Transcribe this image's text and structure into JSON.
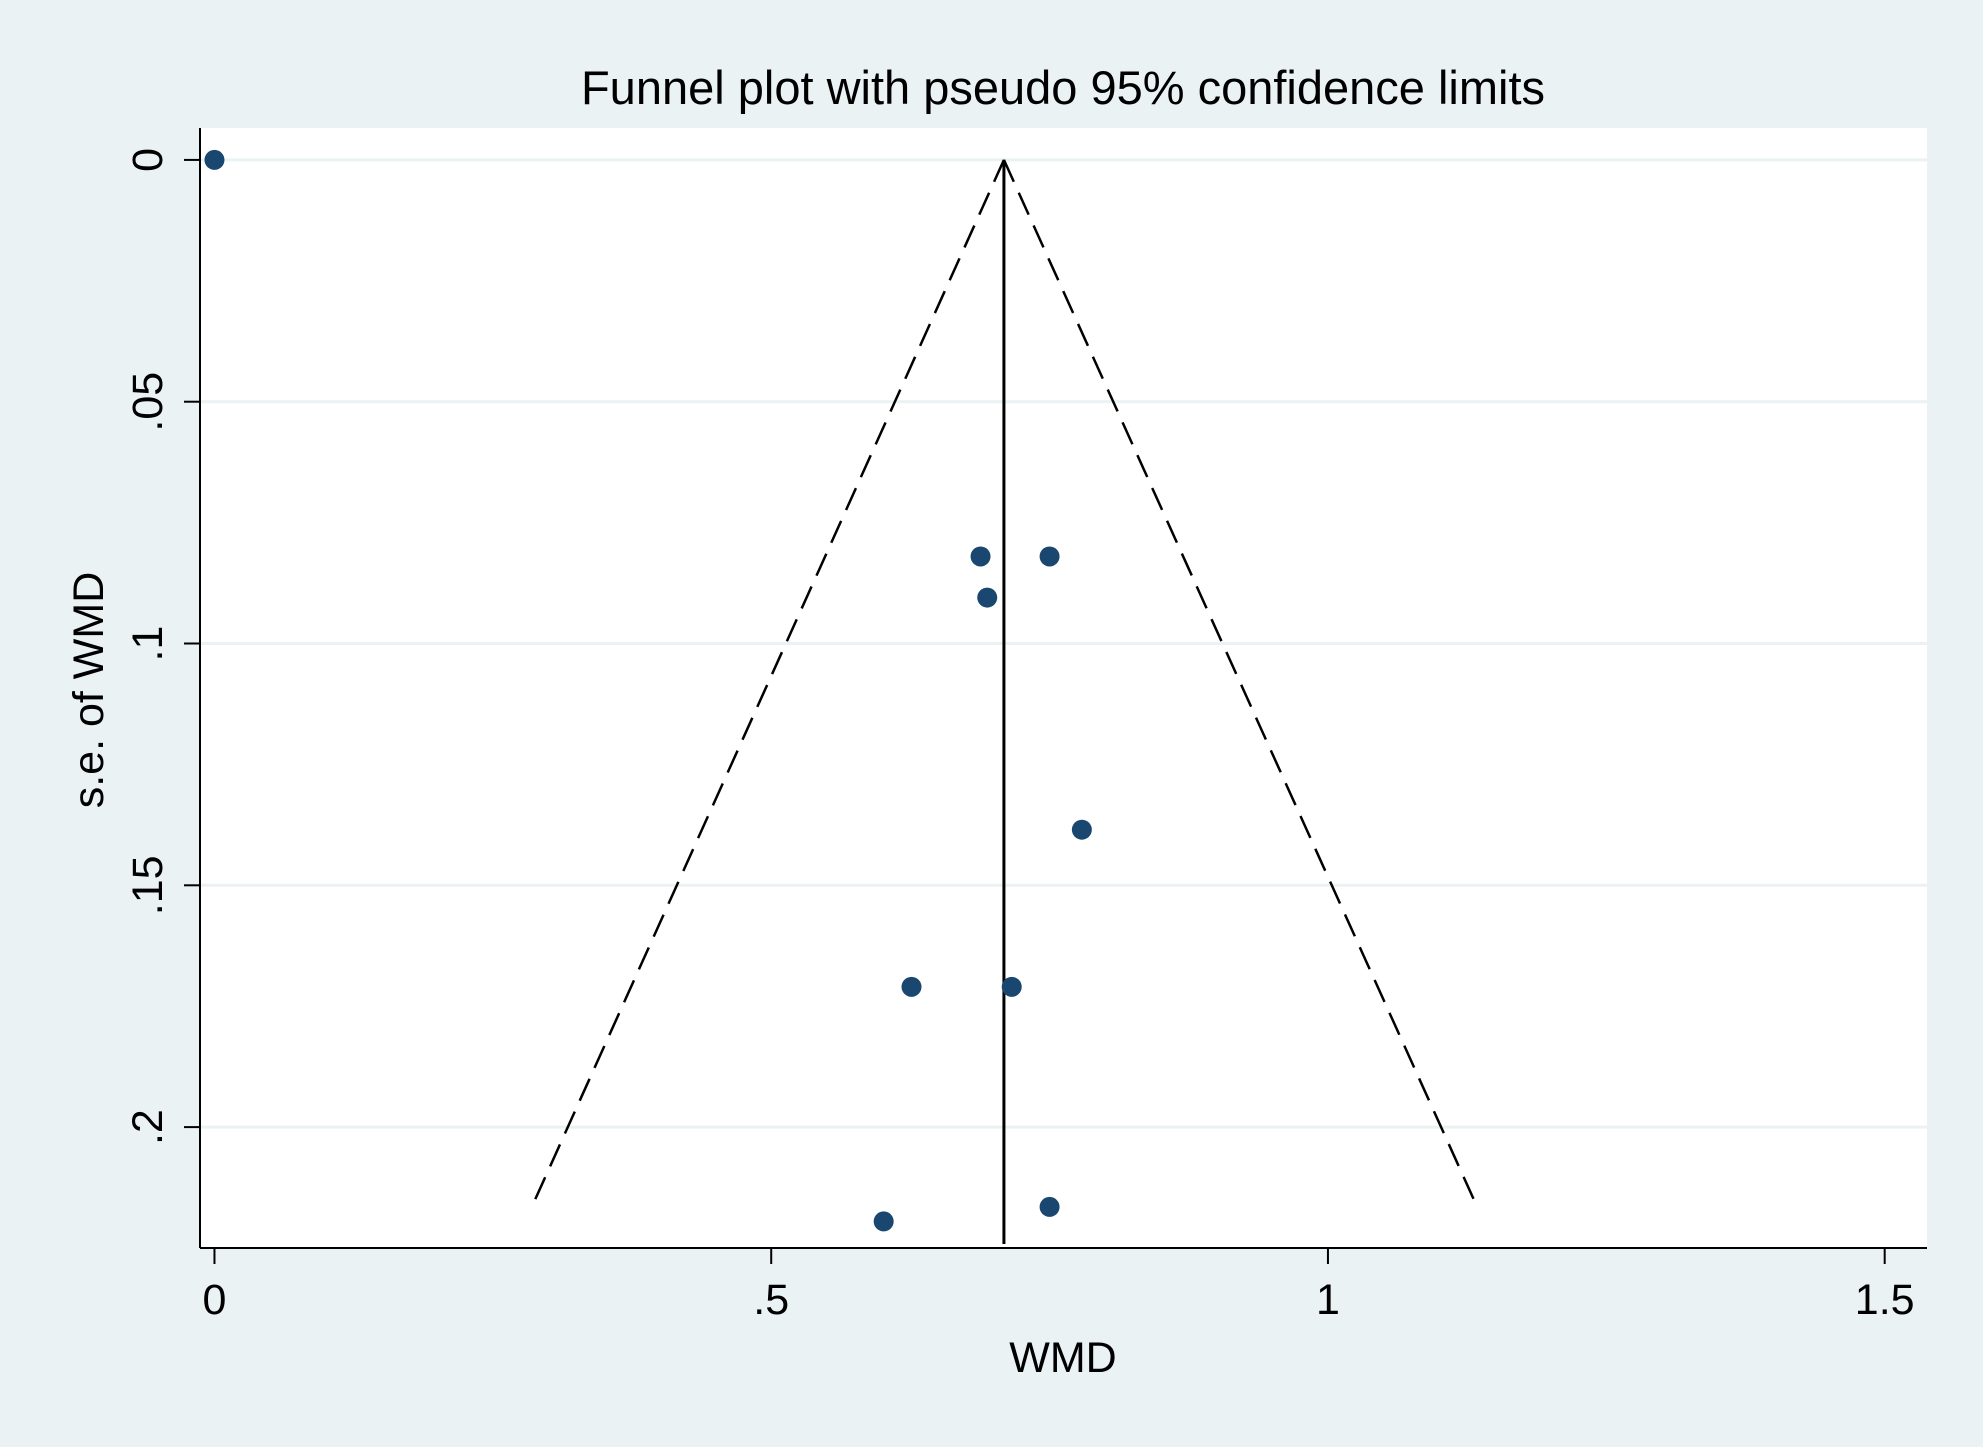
{
  "chart_data": {
    "type": "scatter",
    "title": "Funnel plot with pseudo 95% confidence limits",
    "xlabel": "WMD",
    "ylabel": "s.e. of WMD",
    "xlim": [
      -0.013,
      1.538
    ],
    "ylim": [
      -0.0066,
      0.225
    ],
    "y_reversed": true,
    "grid": true,
    "xticks": [
      {
        "value": 0,
        "label": "0"
      },
      {
        "value": 0.5,
        "label": ".5"
      },
      {
        "value": 1,
        "label": "1"
      },
      {
        "value": 1.5,
        "label": "1.5"
      }
    ],
    "yticks": [
      {
        "value": 0,
        "label": "0"
      },
      {
        "value": 0.05,
        "label": ".05"
      },
      {
        "value": 0.1,
        "label": ".1"
      },
      {
        "value": 0.15,
        "label": ".15"
      },
      {
        "value": 0.2,
        "label": ".2"
      }
    ],
    "points": [
      {
        "x": 0.0,
        "y": 0.0
      },
      {
        "x": 0.688,
        "y": 0.082
      },
      {
        "x": 0.75,
        "y": 0.082
      },
      {
        "x": 0.694,
        "y": 0.0905
      },
      {
        "x": 0.779,
        "y": 0.1385
      },
      {
        "x": 0.626,
        "y": 0.171
      },
      {
        "x": 0.716,
        "y": 0.171
      },
      {
        "x": 0.75,
        "y": 0.2165
      },
      {
        "x": 0.601,
        "y": 0.2195
      }
    ],
    "pooled_estimate": 0.709,
    "se_max": 0.2165,
    "funnel_lower_end": 0.285,
    "funnel_upper_end": 1.134,
    "colors": {
      "outer_background": "#eaf2f3",
      "plot_background": "#ffffff",
      "gridline": "#eaf2f3",
      "marker": "#1a476f",
      "line": "#000000"
    }
  }
}
